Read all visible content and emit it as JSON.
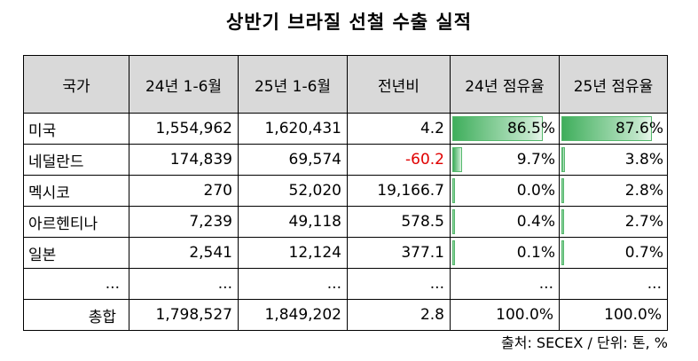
{
  "title": "상반기 브라질 선철 수출 실적",
  "table": {
    "headers": [
      "국가",
      "24년 1-6월",
      "25년 1-6월",
      "전년비",
      "24년 점유율",
      "25년 점유율"
    ],
    "rows": [
      {
        "country": "미국",
        "h1_2024": "1,554,962",
        "h1_2025": "1,620,431",
        "yoy": "4.2",
        "share_2024": "86.5%",
        "share_2025": "87.6%",
        "share_2024_value": 86.5,
        "share_2025_value": 87.6
      },
      {
        "country": "네덜란드",
        "h1_2024": "174,839",
        "h1_2025": "69,574",
        "yoy": "-60.2",
        "share_2024": "9.7%",
        "share_2025": "3.8%",
        "share_2024_value": 9.7,
        "share_2025_value": 3.8
      },
      {
        "country": "멕시코",
        "h1_2024": "270",
        "h1_2025": "52,020",
        "yoy": "19,166.7",
        "share_2024": "0.0%",
        "share_2025": "2.8%",
        "share_2024_value": 0.0,
        "share_2025_value": 2.8
      },
      {
        "country": "아르헨티나",
        "h1_2024": "7,239",
        "h1_2025": "49,118",
        "yoy": "578.5",
        "share_2024": "0.4%",
        "share_2025": "2.7%",
        "share_2024_value": 0.4,
        "share_2025_value": 2.7
      },
      {
        "country": "일본",
        "h1_2024": "2,541",
        "h1_2025": "12,124",
        "yoy": "377.1",
        "share_2024": "0.1%",
        "share_2025": "0.7%",
        "share_2024_value": 0.1,
        "share_2025_value": 0.7
      },
      {
        "country": "...",
        "h1_2024": "...",
        "h1_2025": "...",
        "yoy": "...",
        "share_2024": "...",
        "share_2025": "..."
      }
    ],
    "total": {
      "label": "총합",
      "h1_2024": "1,798,527",
      "h1_2025": "1,849,202",
      "yoy": "2.8",
      "share_2024": "100.0%",
      "share_2025": "100.0%"
    }
  },
  "source": "출처: SECEX / 단위: 톤, %",
  "colors": {
    "negative": "#e00000",
    "bar": "#3fae5c",
    "header_bg": "#d9d9d9"
  }
}
